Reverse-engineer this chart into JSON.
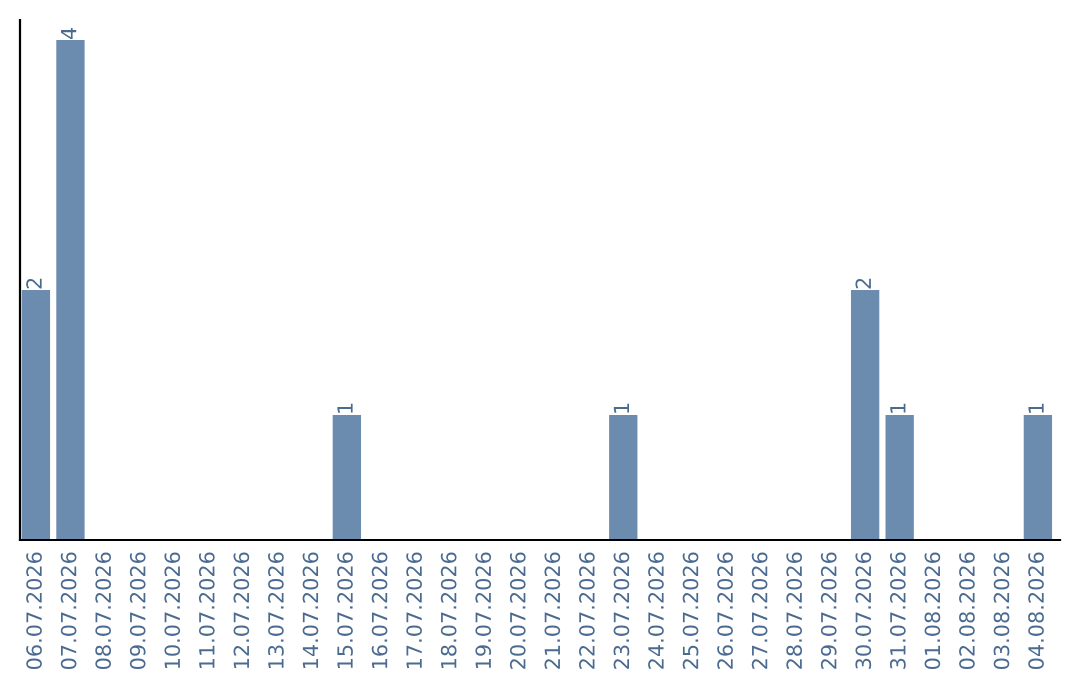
{
  "chart_data": {
    "type": "bar",
    "categories": [
      "06.07.2026",
      "07.07.2026",
      "08.07.2026",
      "09.07.2026",
      "10.07.2026",
      "11.07.2026",
      "12.07.2026",
      "13.07.2026",
      "14.07.2026",
      "15.07.2026",
      "16.07.2026",
      "17.07.2026",
      "18.07.2026",
      "19.07.2026",
      "20.07.2026",
      "21.07.2026",
      "22.07.2026",
      "23.07.2026",
      "24.07.2026",
      "25.07.2026",
      "26.07.2026",
      "27.07.2026",
      "28.07.2026",
      "29.07.2026",
      "30.07.2026",
      "31.07.2026",
      "01.08.2026",
      "02.08.2026",
      "03.08.2026",
      "04.08.2026"
    ],
    "values": [
      2,
      4,
      0,
      0,
      0,
      0,
      0,
      0,
      0,
      1,
      0,
      0,
      0,
      0,
      0,
      0,
      0,
      1,
      0,
      0,
      0,
      0,
      0,
      0,
      2,
      1,
      0,
      0,
      0,
      1
    ],
    "value_labels": [
      "2",
      "4",
      null,
      null,
      null,
      null,
      null,
      null,
      null,
      "1",
      null,
      null,
      null,
      null,
      null,
      null,
      null,
      "1",
      null,
      null,
      null,
      null,
      null,
      null,
      "2",
      "1",
      null,
      null,
      null,
      "1"
    ],
    "color": "#6b8cae",
    "tick_labels": "x",
    "grid": false,
    "legend": false
  }
}
